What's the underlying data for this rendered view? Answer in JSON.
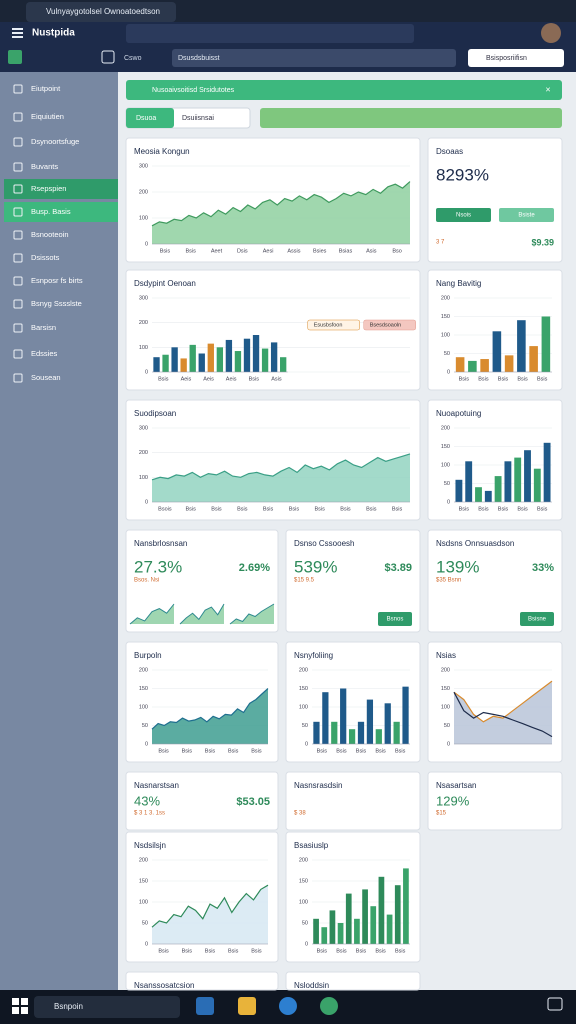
{
  "browser": {
    "tab_title": "Vulnyaygotolsel Ownoatoedtson"
  },
  "header": {
    "title": "Nustpida",
    "breadcrumb_home": "Cswo",
    "breadcrumb": "Dsusdsbuisst",
    "search": "Bsisposriifisn"
  },
  "sidebar": {
    "items": [
      "Eiutpoint",
      "Eiquiutien",
      "Dsynoortsfuge",
      "Buvants",
      "Rsepspien",
      "Busp. Basis",
      "Bsnooteoin",
      "Dsissots",
      "Esnposr fs birts",
      "Bsnyg Sssslste",
      "Barsisn",
      "Edssies",
      "Sousean"
    ]
  },
  "banner": "Nusoaivsoitisd  Srsidutotes",
  "filters": {
    "select1": "Dsuoa",
    "select2": "Dsuiisnsai"
  },
  "panels": [
    {
      "title": "Meosia Kongun",
      "chart": {
        "type": "area",
        "color": "#3f9a5e",
        "fill": "#8fd0a0",
        "values": [
          70,
          85,
          80,
          95,
          90,
          110,
          100,
          120,
          105,
          130,
          115,
          140,
          125,
          150,
          135,
          160,
          170,
          150,
          175,
          165,
          185,
          170,
          190,
          180,
          160,
          175,
          195,
          185,
          200,
          190,
          210,
          195,
          220,
          230,
          215,
          240
        ],
        "ylim": [
          0,
          300
        ],
        "yticks": [
          0,
          100,
          200,
          300
        ],
        "xlabels": [
          "Bsis",
          "Bsis",
          "Aeet",
          "Dsis",
          "Aesi",
          "Assis",
          "Bsies",
          "Bsias",
          "Asis",
          "Bso"
        ]
      }
    },
    {
      "title": "Dsoaas",
      "kpi": {
        "value": "8293%",
        "sub": "3 7",
        "right": "$9.39",
        "buttons": [
          "Nsois",
          "Bsiste"
        ]
      }
    },
    {
      "title": "Dsdypint Oenoan",
      "chart": {
        "type": "bar",
        "values": [
          60,
          70,
          100,
          55,
          110,
          75,
          115,
          100,
          130,
          85,
          135,
          150,
          95,
          120,
          60
        ],
        "colors": [
          "#1f5a8a",
          "#3aa36a",
          "#1f5a8a",
          "#d98b2e",
          "#3aa36a",
          "#1f5a8a",
          "#d98b2e",
          "#3aa36a",
          "#1f5a8a",
          "#3aa36a",
          "#1f5a8a",
          "#1f5a8a",
          "#3aa36a",
          "#1f5a8a",
          "#3aa36a"
        ],
        "ylim": [
          0,
          300
        ],
        "yticks": [
          0,
          100,
          200,
          300
        ],
        "xlabels": [
          "Bsis",
          "Aeis",
          "Aeis",
          "Aeis",
          "Bsis",
          "Asis"
        ],
        "legend": [
          "Esusbsfoon",
          "Bsesdsoaoln"
        ]
      }
    },
    {
      "title": "Nang Bavitig",
      "chart": {
        "type": "bar",
        "values": [
          40,
          30,
          35,
          110,
          45,
          140,
          70,
          150
        ],
        "colors": [
          "#d98b2e",
          "#3aa36a",
          "#d98b2e",
          "#1f5a8a",
          "#d98b2e",
          "#1f5a8a",
          "#d98b2e",
          "#3aa36a"
        ],
        "ylim": [
          0,
          200
        ],
        "yticks": [
          0,
          50,
          100,
          150,
          200
        ],
        "xlabels": [
          "Bsis",
          "Bsis",
          "Bsis",
          "Bsis",
          "Bsis"
        ]
      }
    },
    {
      "title": "Suodipsoan",
      "chart": {
        "type": "area",
        "color": "#3a9f86",
        "fill": "#93d3c1",
        "values": [
          90,
          100,
          95,
          110,
          105,
          120,
          100,
          115,
          110,
          125,
          105,
          100,
          115,
          120,
          110,
          105,
          125,
          140,
          120,
          150,
          135,
          145,
          130,
          155,
          170,
          150,
          140,
          160,
          180,
          165,
          175,
          185,
          195
        ],
        "ylim": [
          0,
          300
        ],
        "yticks": [
          0,
          100,
          200,
          300
        ],
        "xlabels": [
          "Bsois",
          "Bsis",
          "Bsis",
          "Bsis",
          "Bsis",
          "Bsis",
          "Bsis",
          "Bsis",
          "Bsis",
          "Bsis"
        ]
      }
    },
    {
      "title": "Nuoapotuing",
      "chart": {
        "type": "bar",
        "values": [
          60,
          110,
          40,
          30,
          70,
          110,
          120,
          140,
          90,
          160
        ],
        "colors": [
          "#1f5a8a",
          "#1f5a8a",
          "#3aa36a",
          "#1f5a8a",
          "#3aa36a",
          "#1f5a8a",
          "#3aa36a",
          "#1f5a8a",
          "#3aa36a",
          "#1f5a8a"
        ],
        "ylim": [
          0,
          200
        ],
        "yticks": [
          0,
          50,
          100,
          150,
          200
        ],
        "xlabels": [
          "Bsis",
          "Bsis",
          "Bsis",
          "Bsis",
          "Bsis"
        ]
      }
    },
    {
      "title": "Nansbrlosnsan",
      "kpi": {
        "value": "27.3%",
        "sub": "Bsos. Nsi",
        "right": "2.69%"
      },
      "sparks": [
        [
          20,
          24,
          22,
          28,
          30,
          27,
          33
        ],
        [
          18,
          22,
          25,
          21,
          27,
          29,
          24,
          31
        ],
        [
          16,
          20,
          18,
          24,
          22,
          26,
          29,
          32
        ]
      ]
    },
    {
      "title": "Dsnso Cssooesh",
      "kpi": {
        "value": "539%",
        "sub": "$15 9.5",
        "right": "$3.89",
        "buttons": [
          "Bsnos"
        ]
      }
    },
    {
      "title": "Nsdsns Onnsuasdson",
      "kpi": {
        "value": "139%",
        "sub": "$35 Bsnn",
        "right": "33%",
        "buttons": [
          "Bsisne"
        ]
      }
    },
    {
      "title": "Burpoln",
      "chart": {
        "type": "area",
        "color": "#1f6f8f",
        "fill": "#3e9e90",
        "values": [
          40,
          55,
          50,
          60,
          58,
          70,
          62,
          65,
          72,
          60,
          75,
          68,
          80,
          78,
          95,
          85,
          110,
          120,
          135,
          150
        ],
        "ylim": [
          0,
          200
        ],
        "yticks": [
          0,
          50,
          100,
          150,
          200
        ],
        "xlabels": [
          "Bsis",
          "Bsis",
          "Bsis",
          "Bsis",
          "Bsis"
        ]
      }
    },
    {
      "title": "Nsnyfoliing",
      "chart": {
        "type": "bar",
        "values": [
          60,
          140,
          60,
          150,
          40,
          60,
          120,
          40,
          110,
          60,
          155
        ],
        "colors": [
          "#1f5a8a",
          "#1f5a8a",
          "#3aa36a",
          "#1f5a8a",
          "#3aa36a",
          "#1f5a8a",
          "#1f5a8a",
          "#3aa36a",
          "#1f5a8a",
          "#3aa36a",
          "#1f5a8a"
        ],
        "ylim": [
          0,
          200
        ],
        "yticks": [
          0,
          50,
          100,
          150,
          200
        ],
        "xlabels": [
          "Bsis",
          "Bsis",
          "Bsis",
          "Bsis",
          "Bsis"
        ]
      }
    },
    {
      "title": "Nsias",
      "chart": {
        "type": "line",
        "fill": "#b8c4d8",
        "series": [
          {
            "color": "#d98b2e",
            "values": [
              140,
              120,
              80,
              60,
              75,
              70,
              90,
              110,
              130,
              150,
              170
            ]
          },
          {
            "color": "#1d2b4a",
            "values": [
              140,
              90,
              70,
              85,
              80,
              75,
              65,
              55,
              45,
              35,
              20
            ]
          }
        ],
        "ylim": [
          0,
          200
        ],
        "yticks": [
          0,
          50,
          100,
          150,
          200
        ]
      }
    },
    {
      "title": "Nasnarstsan",
      "kpi": {
        "value": "43%",
        "sub": "$ 3 1 3. 1ss",
        "right": "$53.05"
      }
    },
    {
      "title": "Nasnsrasdsin",
      "kpi": {
        "sub": "$ 38"
      }
    },
    {
      "title": "Nsasartsan",
      "kpi": {
        "value": "129%",
        "sub": "$15"
      }
    },
    {
      "title": "Nsdsilsjn",
      "chart": {
        "type": "area",
        "color": "#2e8a5a",
        "fill": "#d6e8f2",
        "values": [
          40,
          55,
          50,
          70,
          65,
          90,
          80,
          60,
          95,
          85,
          110,
          75,
          100,
          120,
          105,
          130,
          140
        ],
        "ylim": [
          0,
          200
        ],
        "yticks": [
          0,
          50,
          100,
          150,
          200
        ],
        "xlabels": [
          "Bsis",
          "Bsis",
          "Bsis",
          "Bsis",
          "Bsis"
        ]
      }
    },
    {
      "title": "Bsasiuslp",
      "chart": {
        "type": "bar",
        "values": [
          60,
          40,
          80,
          50,
          120,
          60,
          130,
          90,
          160,
          70,
          140,
          180
        ],
        "colors": [
          "#2e8a5a",
          "#3aa36a",
          "#2e8a5a",
          "#3aa36a",
          "#2e8a5a",
          "#3aa36a",
          "#2e8a5a",
          "#3aa36a",
          "#2e8a5a",
          "#3aa36a",
          "#2e8a5a",
          "#3aa36a"
        ],
        "ylim": [
          0,
          200
        ],
        "yticks": [
          0,
          50,
          100,
          150,
          200
        ],
        "xlabels": [
          "Bsis",
          "Bsis",
          "Bsis",
          "Bsis",
          "Bsis"
        ]
      }
    },
    {
      "title": "Nsanssosatcsion"
    },
    {
      "title": "Nsloddsin"
    }
  ],
  "taskbar": {
    "search": "Bsnpoin"
  }
}
